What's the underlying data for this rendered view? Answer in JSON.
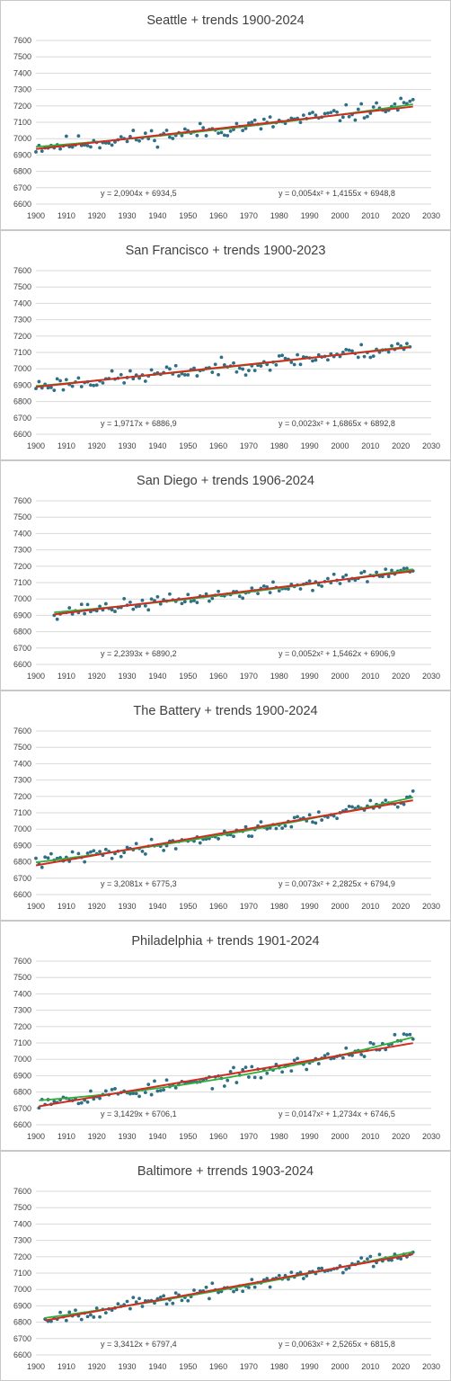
{
  "colors": {
    "points": "#2e6f86",
    "linear_trend": "#d22b1f",
    "quadratic_trend": "#2fae3a",
    "gridline": "#d9d9d9",
    "border": "#c8c8c8"
  },
  "chart_data": [
    {
      "type": "scatter",
      "title": "Seattle + trends 1900-2024",
      "xlim": [
        1900,
        2030
      ],
      "ylim": [
        6600,
        7600
      ],
      "xticks": [
        1900,
        1910,
        1920,
        1930,
        1940,
        1950,
        1960,
        1970,
        1980,
        1990,
        2000,
        2010,
        2020,
        2030
      ],
      "yticks": [
        6600,
        6700,
        6800,
        6900,
        7000,
        7100,
        7200,
        7300,
        7400,
        7500,
        7600
      ],
      "grid": true,
      "x_range": [
        1900,
        2024
      ],
      "x_base": 1899,
      "seed": 11,
      "noise": 45,
      "trendlines": [
        {
          "kind": "linear",
          "coef": [
            2.0904,
            6934.5
          ],
          "label": "y = 2,0904x + 6934,5"
        },
        {
          "kind": "quadratic",
          "coef": [
            0.0054,
            1.4155,
            6948.8
          ],
          "label": "y = 0,0054x² + 1,4155x + 6948,8"
        }
      ]
    },
    {
      "type": "scatter",
      "title": "San Francisco + trends 1900-2023",
      "xlim": [
        1900,
        2030
      ],
      "ylim": [
        6600,
        7600
      ],
      "xticks": [
        1900,
        1910,
        1920,
        1930,
        1940,
        1950,
        1960,
        1970,
        1980,
        1990,
        2000,
        2010,
        2020,
        2030
      ],
      "yticks": [
        6600,
        6700,
        6800,
        6900,
        7000,
        7100,
        7200,
        7300,
        7400,
        7500,
        7600
      ],
      "grid": true,
      "x_range": [
        1900,
        2023
      ],
      "x_base": 1899,
      "seed": 23,
      "noise": 42,
      "trendlines": [
        {
          "kind": "linear",
          "coef": [
            1.9717,
            6886.9
          ],
          "label": "y = 1,9717x + 6886,9"
        },
        {
          "kind": "quadratic",
          "coef": [
            0.0023,
            1.6865,
            6892.8
          ],
          "label": "y = 0,0023x² + 1,6865x + 6892,8"
        }
      ]
    },
    {
      "type": "scatter",
      "title": "San Diego + trends 1906-2024",
      "xlim": [
        1900,
        2030
      ],
      "ylim": [
        6600,
        7600
      ],
      "xticks": [
        1900,
        1910,
        1920,
        1930,
        1940,
        1950,
        1960,
        1970,
        1980,
        1990,
        2000,
        2010,
        2020,
        2030
      ],
      "yticks": [
        6600,
        6700,
        6800,
        6900,
        7000,
        7100,
        7200,
        7300,
        7400,
        7500,
        7600
      ],
      "grid": true,
      "x_range": [
        1906,
        2024
      ],
      "x_base": 1899,
      "seed": 37,
      "noise": 35,
      "trendlines": [
        {
          "kind": "linear",
          "coef": [
            2.2393,
            6890.2
          ],
          "label": "y = 2,2393x + 6890,2"
        },
        {
          "kind": "quadratic",
          "coef": [
            0.0052,
            1.5462,
            6906.9
          ],
          "label": "y = 0,0052x² + 1,5462x + 6906,9"
        }
      ]
    },
    {
      "type": "scatter",
      "title": "The Battery + trends 1900-2024",
      "xlim": [
        1900,
        2030
      ],
      "ylim": [
        6600,
        7600
      ],
      "xticks": [
        1900,
        1910,
        1920,
        1930,
        1940,
        1950,
        1960,
        1970,
        1980,
        1990,
        2000,
        2010,
        2020,
        2030
      ],
      "yticks": [
        6600,
        6700,
        6800,
        6900,
        7000,
        7100,
        7200,
        7300,
        7400,
        7500,
        7600
      ],
      "grid": true,
      "x_range": [
        1900,
        2024
      ],
      "x_base": 1899,
      "seed": 41,
      "noise": 35,
      "trendlines": [
        {
          "kind": "linear",
          "coef": [
            3.2081,
            6775.3
          ],
          "label": "y = 3,2081x + 6775,3"
        },
        {
          "kind": "quadratic",
          "coef": [
            0.0073,
            2.2825,
            6794.9
          ],
          "label": "y = 0,0073x² + 2,2825x + 6794,9"
        }
      ]
    },
    {
      "type": "scatter",
      "title": "Philadelphia + trends 1901-2024",
      "xlim": [
        1900,
        2030
      ],
      "ylim": [
        6600,
        7600
      ],
      "xticks": [
        1900,
        1910,
        1920,
        1930,
        1940,
        1950,
        1960,
        1970,
        1980,
        1990,
        2000,
        2010,
        2020,
        2030
      ],
      "yticks": [
        6600,
        6700,
        6800,
        6900,
        7000,
        7100,
        7200,
        7300,
        7400,
        7500,
        7600
      ],
      "grid": true,
      "x_range": [
        1901,
        2024
      ],
      "x_base": 1899,
      "seed": 53,
      "noise": 40,
      "trendlines": [
        {
          "kind": "linear",
          "coef": [
            3.1429,
            6706.1
          ],
          "label": "y = 3,1429x + 6706,1"
        },
        {
          "kind": "quadratic",
          "coef": [
            0.0147,
            1.2734,
            6746.5
          ],
          "label": "y = 0,0147x² + 1,2734x + 6746,5"
        }
      ]
    },
    {
      "type": "scatter",
      "title": "Baltimore + trrends 1903-2024",
      "xlim": [
        1900,
        2030
      ],
      "ylim": [
        6600,
        7600
      ],
      "xticks": [
        1900,
        1910,
        1920,
        1930,
        1940,
        1950,
        1960,
        1970,
        1980,
        1990,
        2000,
        2010,
        2020,
        2030
      ],
      "yticks": [
        6600,
        6700,
        6800,
        6900,
        7000,
        7100,
        7200,
        7300,
        7400,
        7500,
        7600
      ],
      "grid": true,
      "x_range": [
        1903,
        2024
      ],
      "x_base": 1899,
      "seed": 67,
      "noise": 35,
      "trendlines": [
        {
          "kind": "linear",
          "coef": [
            3.3412,
            6797.4
          ],
          "label": "y = 3,3412x + 6797,4"
        },
        {
          "kind": "quadratic",
          "coef": [
            0.0063,
            2.5265,
            6815.8
          ],
          "label": "y = 0,0063x² + 2,5265x + 6815,8"
        }
      ]
    }
  ]
}
